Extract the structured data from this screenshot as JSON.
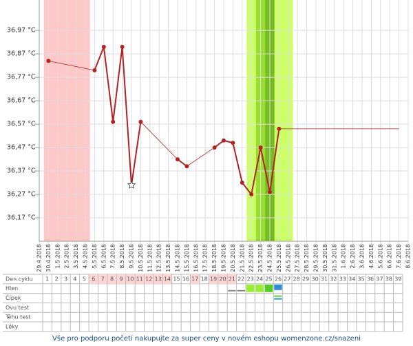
{
  "chart_data": {
    "type": "line",
    "categories": [
      "29.4.2018",
      "30.4.2018",
      "1.5.2018",
      "2.5.2018",
      "3.5.2018",
      "4.5.2018",
      "5.5.2018",
      "6.5.2018",
      "7.5.2018",
      "8.5.2018",
      "9.5.2018",
      "10.5.2018",
      "11.5.2018",
      "12.5.2018",
      "13.5.2018",
      "14.5.2018",
      "15.5.2018",
      "16.5.2018",
      "17.5.2018",
      "18.5.2018",
      "19.5.2018",
      "20.5.2018",
      "21.5.2018",
      "22.5.2018",
      "23.5.2018",
      "24.5.2018",
      "25.5.2018",
      "26.5.2018",
      "27.5.2018",
      "28.5.2018",
      "29.5.2018",
      "30.5.2018",
      "31.5.2018",
      "1.6.2018",
      "2.6.2018",
      "3.6.2018",
      "4.6.2018",
      "5.6.2018",
      "6.6.2018",
      "7.6.2018",
      "8.6.2018"
    ],
    "values": [
      null,
      36.84,
      null,
      null,
      null,
      null,
      36.8,
      36.9,
      36.58,
      36.9,
      36.31,
      36.58,
      null,
      null,
      null,
      36.42,
      36.39,
      null,
      null,
      36.47,
      36.5,
      36.49,
      36.32,
      36.27,
      36.47,
      36.28,
      36.55,
      null,
      null,
      null,
      null,
      null,
      null,
      null,
      null,
      null,
      null,
      null,
      null,
      null,
      null
    ],
    "color": "#b22222",
    "star_date": "9.5.2018",
    "projection_to": "7.6.2018",
    "ylim": [
      36.07,
      37.1
    ],
    "yticks": [
      {
        "value": 36.17,
        "label": "36,17 °C"
      },
      {
        "value": 36.27,
        "label": "36,27 °C"
      },
      {
        "value": 36.37,
        "label": "36,37 °C"
      },
      {
        "value": 36.47,
        "label": "36,47 °C"
      },
      {
        "value": 36.57,
        "label": "36,57 °C"
      },
      {
        "value": 36.67,
        "label": "36,67 °C"
      },
      {
        "value": 36.77,
        "label": "36,77 °C"
      },
      {
        "value": 36.87,
        "label": "36,87 °C"
      },
      {
        "value": 36.97,
        "label": "36,97 °C"
      }
    ],
    "grid": true,
    "bands": [
      {
        "from": "30.4.2018",
        "to": "4.5.2018",
        "color": "#ffc8c8"
      },
      {
        "from": "22.5.2018",
        "to": "26.5.2018",
        "color": "#ccff66"
      },
      {
        "from": "23.5.2018",
        "to": "24.5.2018",
        "color": "#99dd33"
      },
      {
        "from": "24.5.2018",
        "to": "24.5.2018",
        "color": "#77bb22"
      }
    ]
  },
  "table": {
    "row_labels": [
      "Den cyklu",
      "Hlen",
      "Čípek",
      "Ovu test",
      "Těhu test",
      "Léky"
    ],
    "cycle_days": [
      1,
      2,
      3,
      4,
      5,
      6,
      7,
      8,
      9,
      10,
      11,
      12,
      13,
      14,
      15,
      16,
      17,
      18,
      19,
      20,
      21,
      22,
      23,
      24,
      25,
      26,
      27,
      28,
      29,
      30,
      31,
      32,
      33,
      34,
      35,
      36,
      37,
      38,
      39
    ],
    "cycle_day_shaded": [
      false,
      false,
      false,
      false,
      false,
      true,
      true,
      true,
      true,
      true,
      true,
      true,
      true,
      true,
      false,
      false,
      true,
      false,
      true,
      true,
      true,
      false,
      false,
      false,
      false,
      false,
      false,
      false,
      false,
      false,
      false,
      false,
      false,
      false,
      false,
      false,
      false,
      false,
      false
    ]
  },
  "footer": "Vše pro podporu početí nakupujte za super ceny v novém eshopu womenzone.cz/snazeni"
}
